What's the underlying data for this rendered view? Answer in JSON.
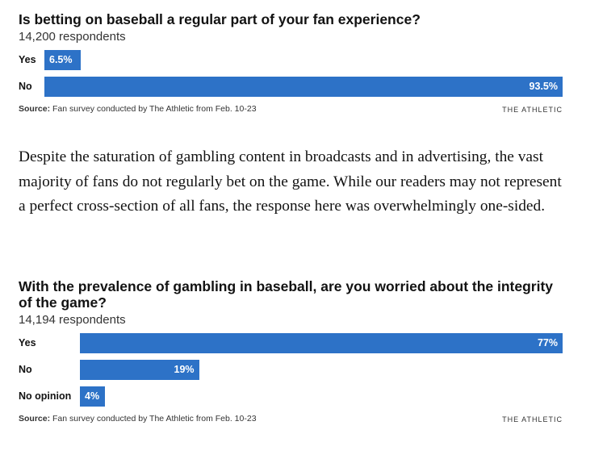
{
  "colors": {
    "bar": "#2d72c7",
    "text": "#121212"
  },
  "chart_data": [
    {
      "type": "bar",
      "orientation": "horizontal",
      "title": "Is betting on baseball a regular part of your fan experience?",
      "subtitle": "14,200 respondents",
      "categories": [
        "Yes",
        "No"
      ],
      "values": [
        6.5,
        93.5
      ],
      "value_labels": [
        "6.5%",
        "93.5%"
      ],
      "xlim": [
        0,
        93.5
      ],
      "source_label": "Source:",
      "source_text": "Fan survey conducted by The Athletic from Feb. 10-23",
      "brand": "THE ATHLETIC"
    },
    {
      "type": "bar",
      "orientation": "horizontal",
      "title": "With the prevalence of gambling in baseball, are you worried about the integrity of the game?",
      "subtitle": "14,194 respondents",
      "categories": [
        "Yes",
        "No",
        "No opinion"
      ],
      "values": [
        77,
        19,
        4
      ],
      "value_labels": [
        "77%",
        "19%",
        "4%"
      ],
      "xlim": [
        0,
        77
      ],
      "source_label": "Source:",
      "source_text": "Fan survey conducted by The Athletic from Feb. 10-23",
      "brand": "THE ATHLETIC"
    }
  ],
  "article": {
    "paragraph": "Despite the saturation of gambling content in broadcasts and in advertising, the vast majority of fans do not regularly bet on the game. While our readers may not represent a perfect cross-section of all fans, the response here was overwhelmingly one-sided."
  }
}
